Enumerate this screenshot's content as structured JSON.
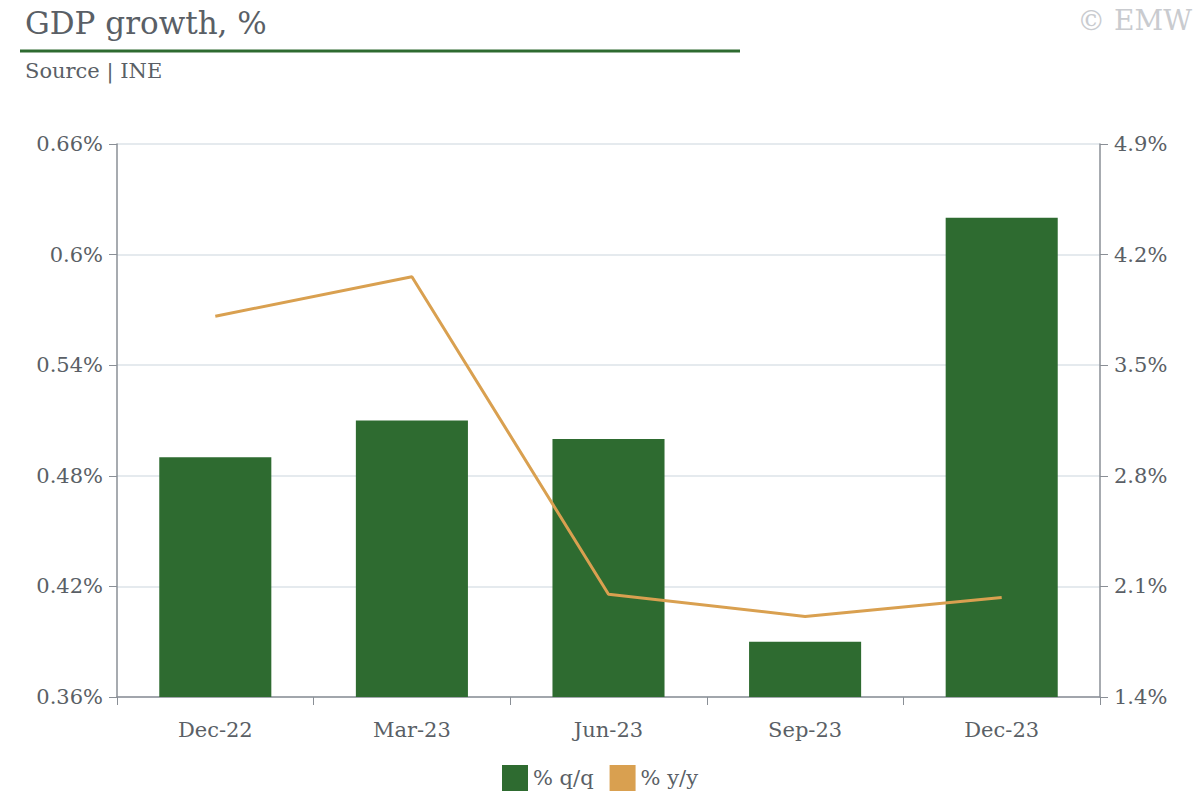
{
  "chart_data": {
    "type": "bar",
    "title": "GDP growth, %",
    "subtitle": "Source | INE",
    "annotations": [
      "© EMW"
    ],
    "categories": [
      "Dec-22",
      "Mar-23",
      "Jun-23",
      "Sep-23",
      "Dec-23"
    ],
    "series": [
      {
        "name": "% q/q",
        "type": "bar",
        "color": "#2e6b30",
        "values": [
          0.49,
          0.51,
          0.5,
          0.39,
          0.62
        ]
      },
      {
        "name": "% y/y",
        "type": "line",
        "axis": "y2",
        "color": "#d9a050",
        "marker": "none",
        "line_style": "solid",
        "values": [
          3.81,
          4.06,
          2.05,
          1.91,
          2.03
        ]
      }
    ],
    "ylim": [
      0.36,
      0.66
    ],
    "yticks": [
      {
        "value": 0.36,
        "label": "0.36%"
      },
      {
        "value": 0.42,
        "label": "0.42%"
      },
      {
        "value": 0.48,
        "label": "0.48%"
      },
      {
        "value": 0.54,
        "label": "0.54%"
      },
      {
        "value": 0.6,
        "label": "0.6%"
      },
      {
        "value": 0.66,
        "label": "0.66%"
      }
    ],
    "y2lim": [
      1.4,
      4.9
    ],
    "y2ticks": [
      {
        "value": 1.4,
        "label": "1.4%"
      },
      {
        "value": 2.1,
        "label": "2.1%"
      },
      {
        "value": 2.8,
        "label": "2.8%"
      },
      {
        "value": 3.5,
        "label": "3.5%"
      },
      {
        "value": 4.2,
        "label": "4.2%"
      },
      {
        "value": 4.9,
        "label": "4.9%"
      }
    ],
    "grid": true,
    "legend": "bottom"
  }
}
